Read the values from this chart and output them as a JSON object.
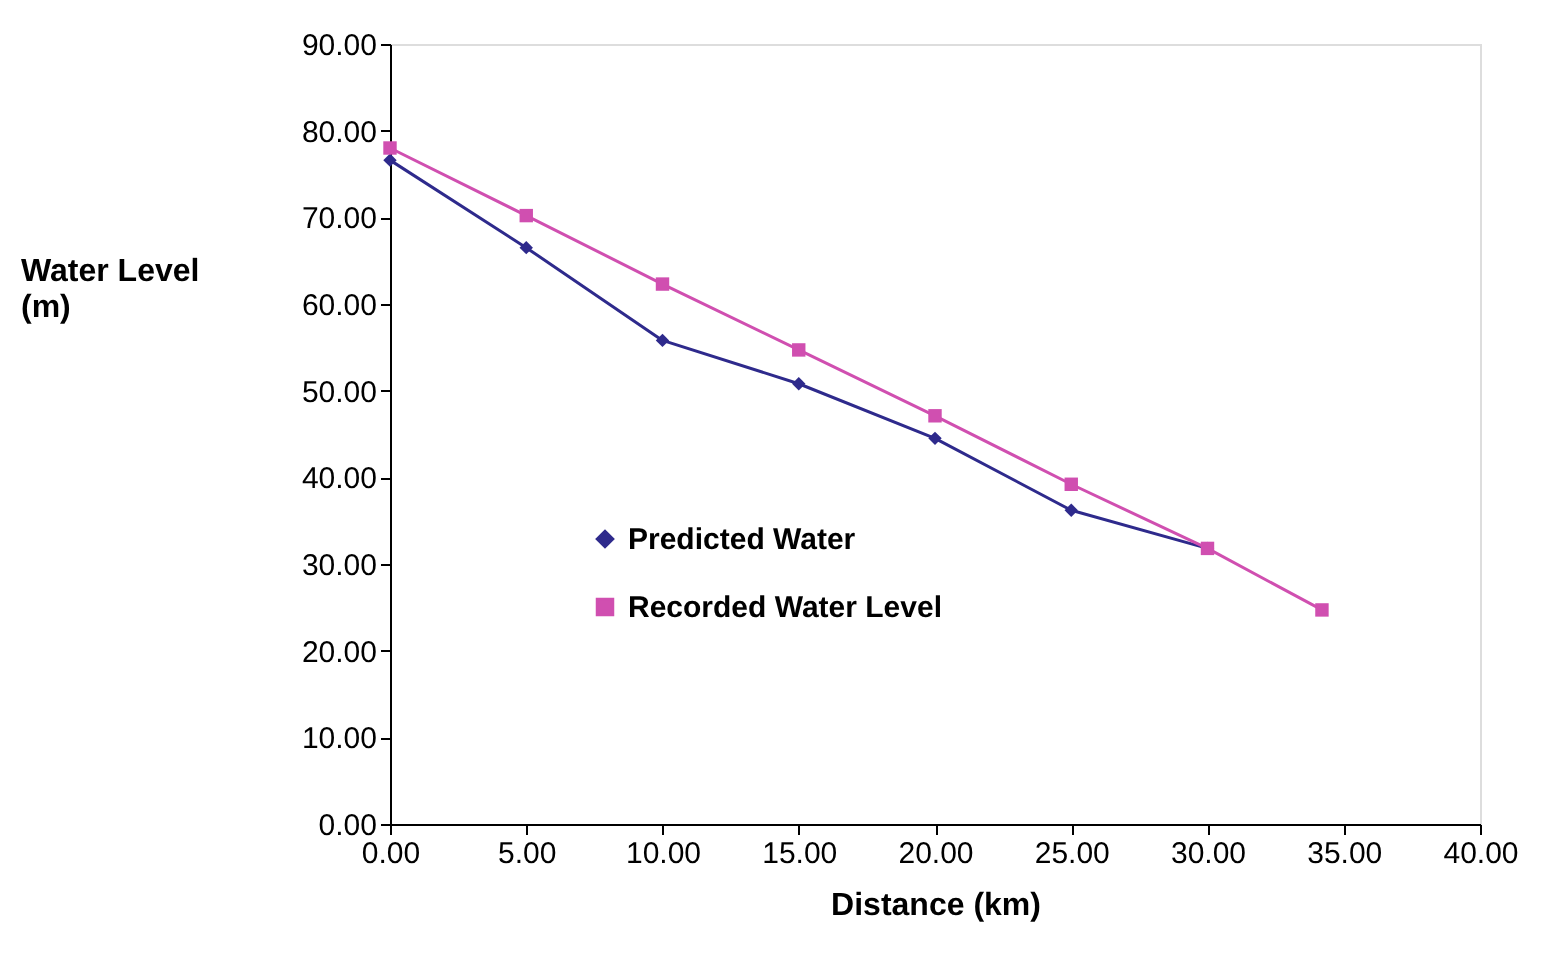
{
  "chart_data": {
    "type": "line",
    "xlabel": "Distance (km)",
    "ylabel": "Water Level\n(m)",
    "series": [
      {
        "name": "Predicted Water",
        "color": "#2e2a8c",
        "marker": "diamond",
        "x": [
          0,
          5,
          10,
          15,
          20,
          25,
          30
        ],
        "values": [
          76.6,
          66.5,
          55.8,
          50.8,
          44.5,
          36.2,
          31.8
        ]
      },
      {
        "name": "Recorded Water Level",
        "color": "#d04fb0",
        "marker": "square",
        "x": [
          0,
          5,
          10,
          15,
          20,
          25,
          30,
          34.2
        ],
        "values": [
          78.0,
          70.2,
          62.3,
          54.7,
          47.1,
          39.2,
          31.8,
          24.7
        ]
      }
    ],
    "xlim": [
      0,
      40
    ],
    "ylim": [
      0,
      90
    ],
    "xticks": [
      {
        "value": 0,
        "label": "0.00"
      },
      {
        "value": 5,
        "label": "5.00"
      },
      {
        "value": 10,
        "label": "10.00"
      },
      {
        "value": 15,
        "label": "15.00"
      },
      {
        "value": 20,
        "label": "20.00"
      },
      {
        "value": 25,
        "label": "25.00"
      },
      {
        "value": 30,
        "label": "30.00"
      },
      {
        "value": 35,
        "label": "35.00"
      },
      {
        "value": 40,
        "label": "40.00"
      }
    ],
    "yticks": [
      {
        "value": 0,
        "label": "0.00"
      },
      {
        "value": 10,
        "label": "10.00"
      },
      {
        "value": 20,
        "label": "20.00"
      },
      {
        "value": 30,
        "label": "30.00"
      },
      {
        "value": 40,
        "label": "40.00"
      },
      {
        "value": 50,
        "label": "50.00"
      },
      {
        "value": 60,
        "label": "60.00"
      },
      {
        "value": 70,
        "label": "70.00"
      },
      {
        "value": 80,
        "label": "80.00"
      },
      {
        "value": 90,
        "label": "90.00"
      }
    ],
    "grid": false,
    "legend": "bottom left",
    "line_style": "solid"
  }
}
